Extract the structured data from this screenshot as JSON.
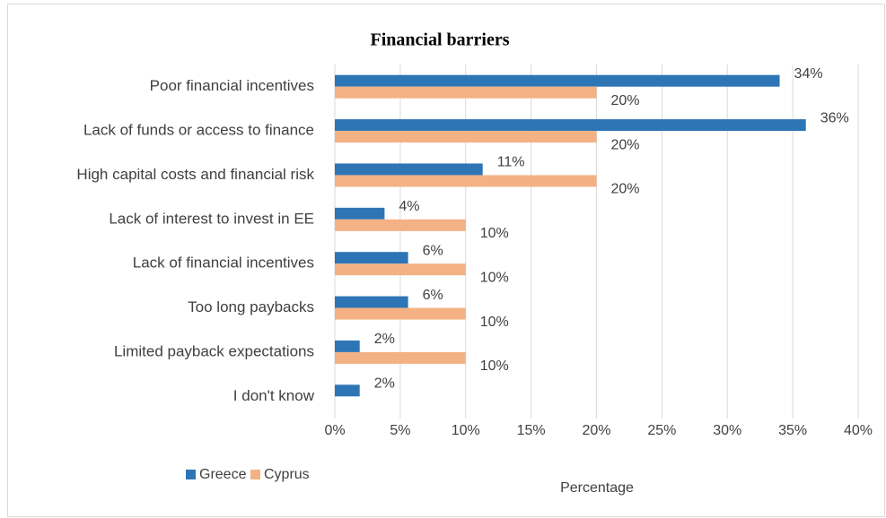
{
  "chart_data": {
    "type": "bar",
    "orientation": "horizontal",
    "title": "Financial barriers",
    "categories": [
      "Poor financial incentives",
      "Lack of funds or access to finance",
      "High capital costs and financial risk",
      "Lack of interest to invest in EE",
      "Lack of financial incentives",
      "Too long paybacks",
      "Limited payback expectations",
      "I don't know"
    ],
    "series": [
      {
        "name": "Greece",
        "color": "#2e75b6",
        "values": [
          34,
          36,
          11.3,
          3.8,
          5.6,
          5.6,
          1.9,
          1.9
        ],
        "value_labels": [
          "34%",
          "36%",
          "11%",
          "4%",
          "6%",
          "6%",
          "2%",
          "2%"
        ]
      },
      {
        "name": "Cyprus",
        "color": "#f4b183",
        "values": [
          20,
          20,
          20,
          10,
          10,
          10,
          10,
          null
        ],
        "value_labels": [
          "20%",
          "20%",
          "20%",
          "10%",
          "10%",
          "10%",
          "10%",
          null
        ]
      }
    ],
    "xlabel": "Percentage",
    "xlim": [
      0,
      40
    ],
    "xticks": [
      {
        "value": 0,
        "label": "0%"
      },
      {
        "value": 5,
        "label": "5%"
      },
      {
        "value": 10,
        "label": "10%"
      },
      {
        "value": 15,
        "label": "15%"
      },
      {
        "value": 20,
        "label": "20%"
      },
      {
        "value": 25,
        "label": "25%"
      },
      {
        "value": 30,
        "label": "30%"
      },
      {
        "value": 35,
        "label": "35%"
      },
      {
        "value": 40,
        "label": "40%"
      }
    ],
    "grid": true,
    "legend": "bottom-left"
  }
}
